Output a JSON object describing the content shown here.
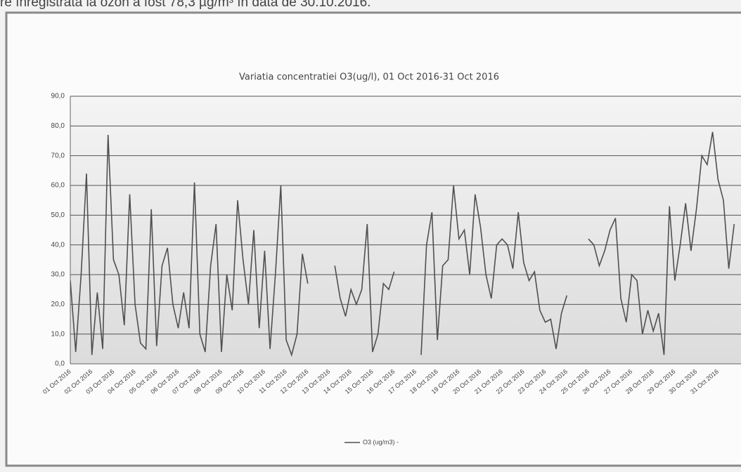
{
  "caption": "re înregistrată la ozon a fost 78,3 µg/m³ în data de 30.10.2016.",
  "chart_data": {
    "type": "line",
    "title": "Variatia concentratiei O3(ug/l), 01 Oct 2016-31 Oct 2016",
    "categories": [
      "01 Oct 2016",
      null,
      null,
      null,
      "02 Oct 2016",
      null,
      null,
      null,
      "03 Oct 2016",
      null,
      null,
      null,
      "04 Oct 2016",
      null,
      null,
      null,
      "05 Oct 2016",
      null,
      null,
      null,
      "06 Oct 2016",
      null,
      null,
      null,
      "07 Oct 2016",
      null,
      null,
      null,
      "08 Oct 2016",
      null,
      null,
      null,
      "09 Oct 2016",
      null,
      null,
      null,
      "10 Oct 2016",
      null,
      null,
      null,
      "11 Oct 2016",
      null,
      null,
      null,
      "12 Oct 2016",
      null,
      null,
      null,
      "13 Oct 2016",
      null,
      null,
      null,
      "14 Oct 2016",
      null,
      null,
      null,
      "15 Oct 2016",
      null,
      null,
      null,
      "16 Oct 2016",
      null,
      null,
      null,
      "17 Oct 2016",
      null,
      null,
      null,
      "18 Oct 2016",
      null,
      null,
      null,
      "19 Oct 2016",
      null,
      null,
      null,
      "20 Oct 2016",
      null,
      null,
      null,
      "21 Oct 2016",
      null,
      null,
      null,
      "22 Oct 2016",
      null,
      null,
      null,
      "23 Oct 2016",
      null,
      null,
      null,
      "24 Oct 2016",
      null,
      null,
      null,
      "25 Oct 2016",
      null,
      null,
      null,
      "26 Oct 2016",
      null,
      null,
      null,
      "27 Oct 2016",
      null,
      null,
      null,
      "28 Oct 2016",
      null,
      null,
      null,
      "29 Oct 2016",
      null,
      null,
      null,
      "30 Oct 2016",
      null,
      null,
      null,
      "31 Oct 2016",
      null,
      null,
      null
    ],
    "series": [
      {
        "name": "O3 (ug/m3) -",
        "color": "#505050",
        "values": [
          28,
          4,
          30,
          64,
          3,
          24,
          5,
          77,
          35,
          30,
          13,
          57,
          20,
          7,
          5,
          52,
          6,
          33,
          39,
          20,
          12,
          24,
          12,
          61,
          10,
          4,
          33,
          47,
          4,
          30,
          18,
          55,
          35,
          20,
          45,
          12,
          38,
          5,
          30,
          60,
          8,
          3,
          10,
          37,
          27,
          null,
          null,
          null,
          null,
          33,
          22,
          16,
          25,
          20,
          25,
          47,
          4,
          10,
          27,
          25,
          31,
          null,
          null,
          null,
          null,
          3,
          40,
          51,
          8,
          33,
          35,
          60,
          42,
          45,
          30,
          57,
          46,
          30,
          22,
          40,
          42,
          40,
          32,
          51,
          34,
          28,
          31,
          18,
          14,
          15,
          5,
          17,
          23,
          null,
          null,
          null,
          42,
          40,
          33,
          38,
          45,
          49,
          22,
          14,
          30,
          28,
          10,
          18,
          11,
          17,
          3,
          53,
          28,
          40,
          54,
          38,
          52,
          70,
          67,
          78,
          62,
          55,
          32,
          47
        ]
      }
    ],
    "ylim": [
      0,
      90
    ],
    "yticks": [
      {
        "value": 0,
        "label": "0,0"
      },
      {
        "value": 10,
        "label": "10,0"
      },
      {
        "value": 20,
        "label": "20,0"
      },
      {
        "value": 30,
        "label": "30,0"
      },
      {
        "value": 40,
        "label": "40,0"
      },
      {
        "value": 50,
        "label": "50,0"
      },
      {
        "value": 60,
        "label": "60,0"
      },
      {
        "value": 70,
        "label": "70,0"
      },
      {
        "value": 80,
        "label": "80,0"
      },
      {
        "value": 90,
        "label": "90,0"
      }
    ],
    "grid": true
  }
}
